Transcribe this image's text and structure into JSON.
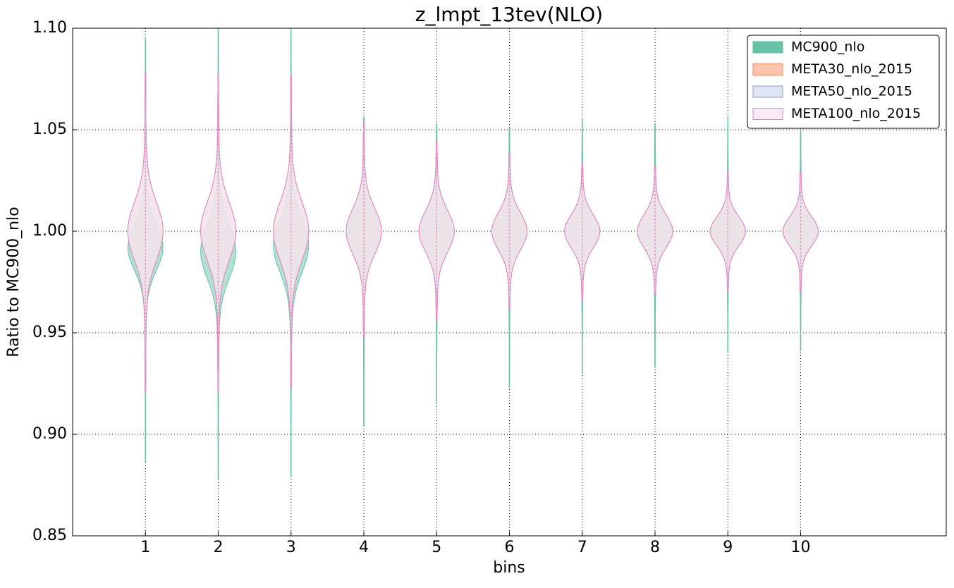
{
  "chart_data": {
    "type": "violin",
    "title": "z_lmpt_13tev(NLO)",
    "xlabel": "bins",
    "ylabel": "Ratio to MC900_nlo",
    "xlim": [
      0,
      12
    ],
    "xticks": [
      1,
      2,
      3,
      4,
      5,
      6,
      7,
      8,
      9,
      10
    ],
    "ylim": [
      0.85,
      1.1
    ],
    "yticks": [
      {
        "value": 0.85,
        "label": "0.85"
      },
      {
        "value": 0.9,
        "label": "0.90"
      },
      {
        "value": 0.95,
        "label": "0.95"
      },
      {
        "value": 1.0,
        "label": "1.00"
      },
      {
        "value": 1.05,
        "label": "1.05"
      },
      {
        "value": 1.1,
        "label": "1.10"
      }
    ],
    "grid": true,
    "legend": "upper right",
    "x": [
      1,
      2,
      3,
      4,
      5,
      6,
      7,
      8,
      9,
      10
    ],
    "series": [
      {
        "name": "MC900_nlo",
        "color": "#66c2a5",
        "fill": "#66c2a5",
        "values": [
          0.992,
          0.99,
          0.993,
          1.0,
          1.0,
          1.0,
          1.0,
          1.0,
          1.0,
          1.0
        ],
        "spreads": [
          0.011,
          0.013,
          0.013,
          0.011,
          0.01,
          0.009,
          0.008,
          0.008,
          0.007,
          0.007
        ],
        "mins": [
          0.886,
          0.878,
          0.879,
          0.904,
          0.915,
          0.923,
          0.93,
          0.933,
          0.94,
          0.941
        ],
        "maxs": [
          1.095,
          1.1,
          1.1,
          1.056,
          1.053,
          1.051,
          1.055,
          1.053,
          1.056,
          1.053
        ]
      },
      {
        "name": "META30_nlo_2015",
        "color": "#fc8d62",
        "fill": "#fdc4ae",
        "values": [
          1.0,
          1.0,
          1.0,
          1.0,
          1.0,
          1.0,
          1.0,
          1.0,
          1.0,
          1.0
        ],
        "spreads": [
          0.014,
          0.014,
          0.014,
          0.011,
          0.01,
          0.009,
          0.008,
          0.008,
          0.007,
          0.007
        ],
        "mins": [
          0.921,
          0.921,
          0.923,
          0.948,
          0.956,
          0.962,
          0.966,
          0.969,
          0.97,
          0.97
        ],
        "maxs": [
          1.078,
          1.078,
          1.077,
          1.054,
          1.044,
          1.038,
          1.034,
          1.032,
          1.03,
          1.029
        ]
      },
      {
        "name": "META50_nlo_2015",
        "color": "#8da0cb",
        "fill": "#dfe5f3",
        "values": [
          1.0,
          1.0,
          1.0,
          1.0,
          1.0,
          1.0,
          1.0,
          1.0,
          1.0,
          1.0
        ],
        "spreads": [
          0.014,
          0.014,
          0.014,
          0.011,
          0.01,
          0.009,
          0.008,
          0.008,
          0.007,
          0.007
        ],
        "mins": [
          0.921,
          0.921,
          0.923,
          0.948,
          0.956,
          0.962,
          0.966,
          0.969,
          0.97,
          0.97
        ],
        "maxs": [
          1.078,
          1.078,
          1.077,
          1.054,
          1.044,
          1.038,
          1.034,
          1.032,
          1.03,
          1.029
        ]
      },
      {
        "name": "META100_nlo_2015",
        "color": "#e78ac3",
        "fill": "#fbeaf5",
        "values": [
          1.0,
          1.0,
          1.0,
          1.0,
          1.0,
          1.0,
          1.0,
          1.0,
          1.0,
          1.0
        ],
        "spreads": [
          0.014,
          0.014,
          0.014,
          0.011,
          0.01,
          0.009,
          0.008,
          0.008,
          0.007,
          0.007
        ],
        "mins": [
          0.921,
          0.921,
          0.923,
          0.948,
          0.956,
          0.962,
          0.966,
          0.969,
          0.97,
          0.97
        ],
        "maxs": [
          1.078,
          1.078,
          1.077,
          1.054,
          1.044,
          1.038,
          1.034,
          1.032,
          1.03,
          1.029
        ]
      }
    ]
  }
}
